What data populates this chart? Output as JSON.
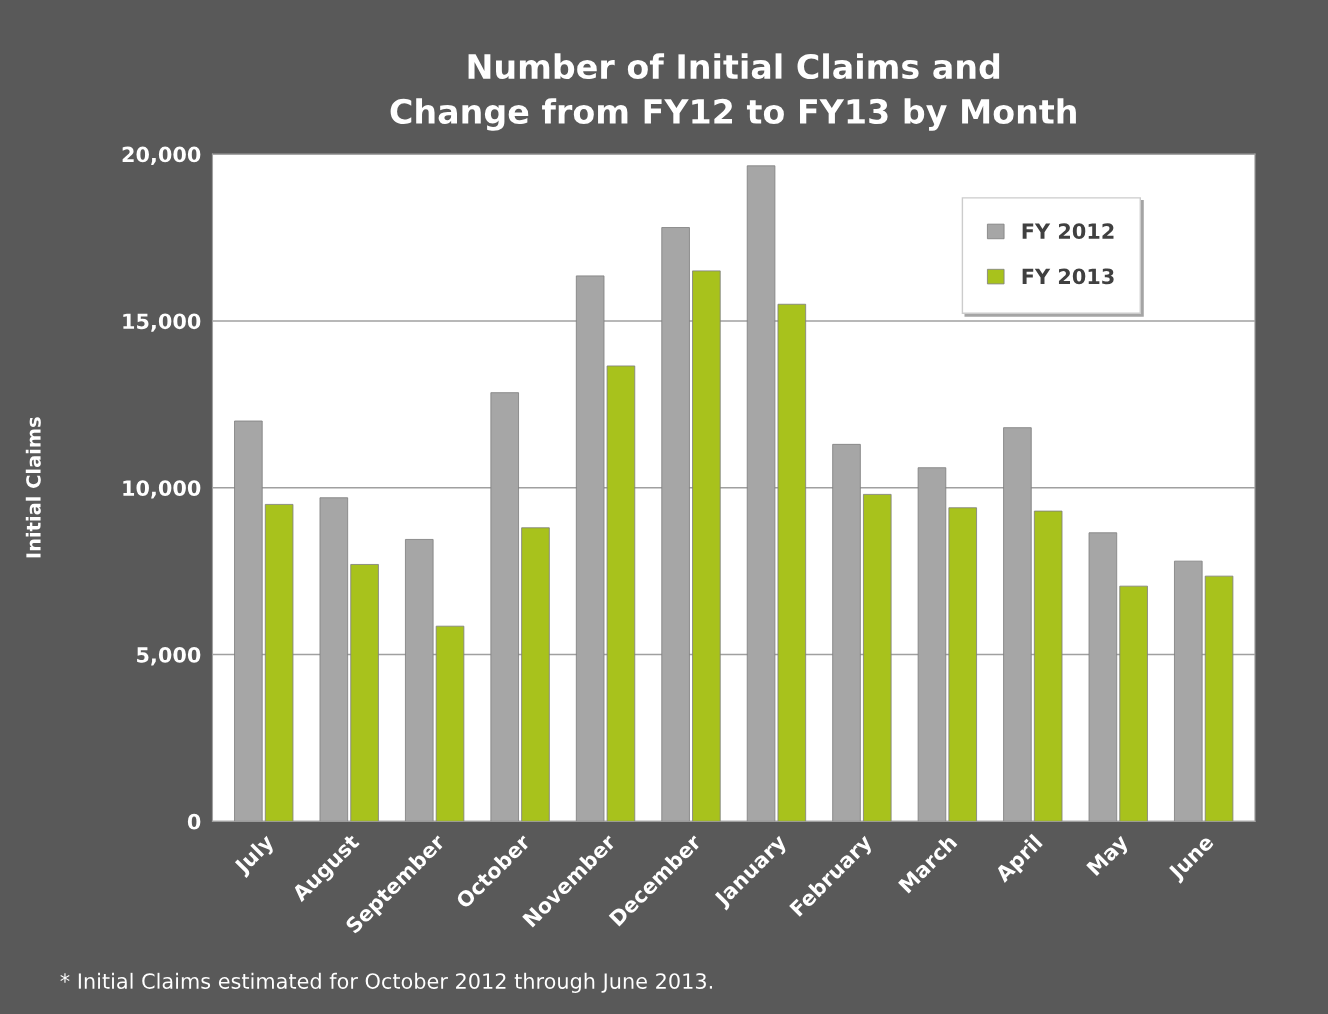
{
  "chart_data": {
    "type": "bar",
    "title": "Number of Initial Claims and\nChange from FY12 to FY13 by Month",
    "ylabel": "Initial Claims",
    "categories": [
      "July",
      "August",
      "September",
      "October",
      "November",
      "December",
      "January",
      "February",
      "March",
      "April",
      "May",
      "June"
    ],
    "series": [
      {
        "name": "FY 2012",
        "color": "#a6a6a6",
        "values": [
          12000,
          9700,
          8450,
          12850,
          16350,
          17800,
          19650,
          11300,
          10600,
          11800,
          8650,
          7800
        ]
      },
      {
        "name": "FY 2013",
        "color": "#a8c21c",
        "values": [
          9500,
          7700,
          5850,
          8800,
          13650,
          16500,
          15500,
          9800,
          9400,
          9300,
          7050,
          7350
        ]
      }
    ],
    "ylim": [
      0,
      20000
    ],
    "yticks": [
      {
        "value": 0,
        "label": "0"
      },
      {
        "value": 5000,
        "label": "5,000"
      },
      {
        "value": 10000,
        "label": "10,000"
      },
      {
        "value": 15000,
        "label": "15,000"
      },
      {
        "value": 20000,
        "label": "20,000"
      }
    ],
    "grid": "y",
    "legend": "top right",
    "annotations": [
      "* Initial Claims estimated for October 2012 through June 2013."
    ]
  }
}
